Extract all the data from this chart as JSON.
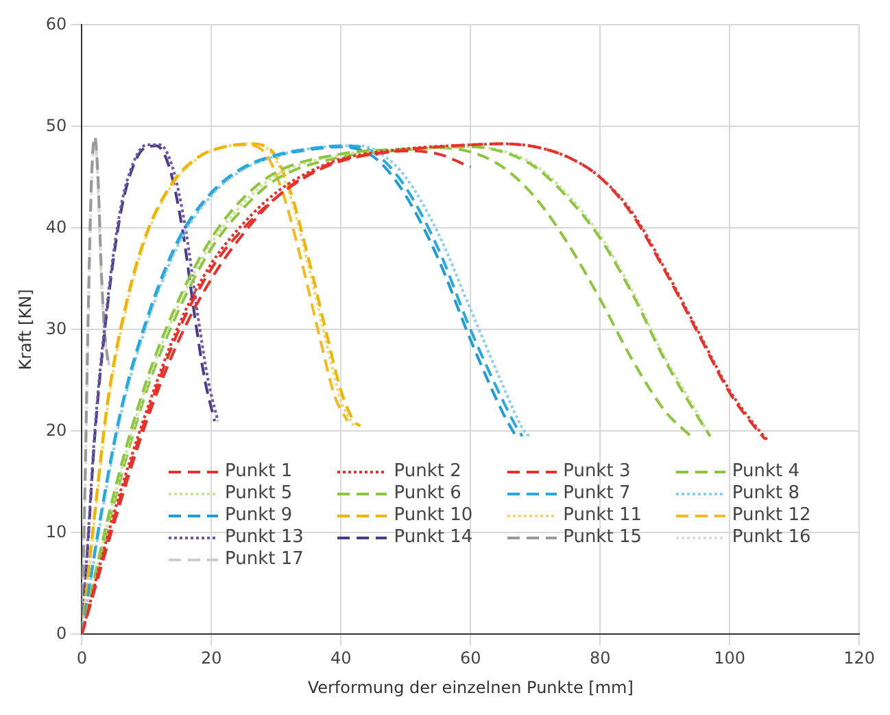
{
  "chart_data": {
    "type": "line",
    "xlabel": "Verformung der einzelnen Punkte [mm]",
    "ylabel": "Kraft [KN]",
    "xlim": [
      0,
      120
    ],
    "xticks": [
      0,
      20,
      40,
      60,
      80,
      100,
      120
    ],
    "ylim": [
      0,
      60
    ],
    "yticks": [
      0,
      10,
      20,
      30,
      40,
      50,
      60
    ],
    "grid": true,
    "legend": "bottom",
    "marker": "none",
    "series": [
      {
        "name": "Punkt 1",
        "color": "#e8312a",
        "line_style": "dashed",
        "x": [
          0,
          5,
          10,
          15,
          20,
          25,
          30,
          35,
          40,
          45,
          50,
          55,
          60
        ],
        "values": [
          0,
          11,
          21,
          29,
          35,
          39.5,
          43,
          45.3,
          46.7,
          47.3,
          47.6,
          47.3,
          46
        ]
      },
      {
        "name": "Punkt 2",
        "color": "#e8312a",
        "line_style": "dotted",
        "x": [
          0,
          5,
          10,
          15,
          20,
          25,
          30,
          35,
          40,
          50,
          60,
          65,
          70,
          75,
          80,
          85,
          90,
          95,
          100,
          104,
          106
        ],
        "values": [
          0,
          12,
          22,
          30.5,
          36.5,
          40.5,
          43.5,
          45.5,
          46.8,
          47.8,
          48.2,
          48.3,
          48,
          47,
          45,
          41.5,
          36,
          30,
          24,
          20.5,
          19
        ]
      },
      {
        "name": "Punkt 3",
        "color": "#e8312a",
        "line_style": "dashed",
        "x": [
          0,
          5,
          10,
          15,
          20,
          25,
          30,
          35,
          40,
          50,
          60,
          65,
          70,
          75,
          80,
          85,
          90,
          95,
          100,
          104,
          105.5
        ],
        "values": [
          0,
          11.5,
          21.5,
          30,
          36,
          40,
          43,
          45.2,
          46.6,
          47.7,
          48.2,
          48.3,
          48,
          47,
          45,
          41.3,
          35.8,
          29.8,
          23.8,
          20.3,
          19.2
        ]
      },
      {
        "name": "Punkt 4",
        "color": "#8cc63f",
        "line_style": "dashed",
        "x": [
          0,
          5,
          10,
          15,
          20,
          25,
          30,
          40,
          50,
          60,
          65,
          70,
          75,
          80,
          85,
          90,
          95,
          97
        ],
        "values": [
          0,
          14,
          25,
          33,
          39,
          43,
          45.5,
          47.3,
          47.8,
          48,
          47.5,
          46,
          43,
          39,
          33.5,
          27,
          21.5,
          19.5
        ]
      },
      {
        "name": "Punkt 5",
        "color": "#cfe3a0",
        "line_style": "dotted",
        "x": [
          0,
          5,
          10,
          15,
          20,
          25,
          30,
          40,
          50,
          60,
          65,
          70,
          75,
          80,
          85,
          90,
          95,
          96.5
        ],
        "values": [
          0,
          13.5,
          24.5,
          32.5,
          38.5,
          42.5,
          45.2,
          47.2,
          47.8,
          48,
          47.6,
          46.2,
          43.3,
          39.3,
          33.8,
          27.3,
          21.8,
          20
        ]
      },
      {
        "name": "Punkt 6",
        "color": "#8cc63f",
        "line_style": "dashed",
        "x": [
          0,
          5,
          10,
          15,
          20,
          25,
          30,
          40,
          50,
          55,
          60,
          65,
          70,
          75,
          80,
          85,
          90,
          94
        ],
        "values": [
          0,
          13,
          24,
          32,
          38,
          42,
          44.8,
          47,
          47.7,
          47.9,
          47.5,
          46,
          43,
          38.5,
          33,
          27,
          22,
          19.5
        ]
      },
      {
        "name": "Punkt 7",
        "color": "#29a8e0",
        "line_style": "dashed",
        "x": [
          0,
          3,
          6,
          10,
          15,
          20,
          25,
          30,
          35,
          40,
          43,
          46,
          50,
          55,
          60,
          65,
          67,
          68
        ],
        "values": [
          0,
          12,
          22,
          31,
          39,
          43.5,
          46,
          47.2,
          47.8,
          48.1,
          48,
          47,
          44,
          38,
          30,
          23,
          20.5,
          19.5
        ]
      },
      {
        "name": "Punkt 8",
        "color": "#8ccfee",
        "line_style": "dotted",
        "x": [
          0,
          3,
          6,
          10,
          15,
          20,
          25,
          30,
          35,
          40,
          43,
          46,
          50,
          55,
          60,
          65,
          68,
          69
        ],
        "values": [
          0,
          11.5,
          21.5,
          30.5,
          38.5,
          43.2,
          45.8,
          47.1,
          47.8,
          48.1,
          48.1,
          47.4,
          45,
          39.5,
          32,
          24.5,
          20.3,
          19.5
        ]
      },
      {
        "name": "Punkt 9",
        "color": "#1f9bd7",
        "line_style": "dashed",
        "x": [
          0,
          3,
          6,
          10,
          15,
          20,
          25,
          30,
          35,
          40,
          43,
          46,
          50,
          55,
          60,
          65,
          67
        ],
        "values": [
          0,
          11.8,
          21.8,
          30.8,
          38.8,
          43.4,
          45.9,
          47.1,
          47.7,
          48,
          47.7,
          46.5,
          43.2,
          37,
          29,
          21.8,
          19.5
        ]
      },
      {
        "name": "Punkt 10",
        "color": "#f0b400",
        "line_style": "dashed",
        "x": [
          0,
          2,
          4,
          7,
          10,
          14,
          18,
          22,
          26,
          29,
          32,
          35,
          38,
          40,
          42,
          43
        ],
        "values": [
          0,
          12,
          23,
          33,
          39.5,
          44.5,
          47,
          48,
          48.3,
          47.8,
          44,
          37,
          29,
          24,
          21,
          20.5
        ]
      },
      {
        "name": "Punkt 11",
        "color": "#f2d77a",
        "line_style": "dotted",
        "x": [
          0,
          2,
          4,
          7,
          10,
          14,
          18,
          22,
          26,
          29,
          32,
          35,
          38,
          40,
          42
        ],
        "values": [
          0,
          11.5,
          22.5,
          32.5,
          39.2,
          44.3,
          46.9,
          48,
          48.3,
          47.6,
          43.5,
          36.2,
          28,
          23,
          20.5
        ]
      },
      {
        "name": "Punkt 12",
        "color": "#f5b820",
        "line_style": "dashed",
        "x": [
          0,
          2,
          4,
          7,
          10,
          14,
          18,
          22,
          25,
          28,
          31,
          34,
          37,
          39,
          41
        ],
        "values": [
          0,
          11.8,
          22.8,
          32.8,
          39.4,
          44.4,
          47,
          48,
          48.2,
          47.6,
          43.5,
          36.5,
          28.5,
          23.5,
          21
        ]
      },
      {
        "name": "Punkt 13",
        "color": "#6b58a6",
        "line_style": "dotted",
        "x": [
          0,
          1,
          2,
          4,
          6,
          8,
          10,
          12,
          14,
          16,
          18,
          19.5,
          21
        ],
        "values": [
          0,
          10,
          20,
          33,
          42,
          46.5,
          48.2,
          48.2,
          46,
          40,
          31,
          25,
          21
        ]
      },
      {
        "name": "Punkt 14",
        "color": "#4a3a8a",
        "line_style": "dashed",
        "x": [
          0,
          1,
          2,
          4,
          6,
          8,
          10,
          11.5,
          13.5,
          15.5,
          17.5,
          19,
          20.5
        ],
        "values": [
          0,
          9.5,
          19.5,
          32.5,
          41.5,
          46.2,
          48,
          48.1,
          46,
          40,
          31,
          25,
          21
        ]
      },
      {
        "name": "Punkt 15",
        "color": "#999999",
        "line_style": "dashed",
        "x": [
          0,
          0.5,
          1,
          1.5,
          2,
          2.5,
          3,
          3.5,
          4
        ],
        "values": [
          0,
          15,
          32,
          45,
          49,
          45,
          36,
          30,
          27
        ]
      },
      {
        "name": "Punkt 16",
        "color": "#dddddd",
        "line_style": "dotted",
        "x": [
          0,
          0.5,
          1,
          1.5,
          2,
          2.5,
          3,
          3.5,
          4
        ],
        "values": [
          0,
          14,
          31,
          44,
          48.5,
          44,
          35,
          29.5,
          27
        ]
      },
      {
        "name": "Punkt 17",
        "color": "#cccccc",
        "line_style": "dashed",
        "x": [
          0,
          0.5,
          1,
          1.5,
          2,
          2.5,
          3,
          3.5,
          4.2
        ],
        "values": [
          0,
          14.5,
          31.5,
          44.5,
          48.8,
          44.5,
          35.5,
          29.8,
          26.5
        ]
      }
    ]
  }
}
